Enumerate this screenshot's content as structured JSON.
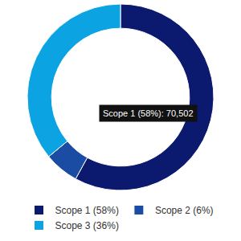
{
  "chart_data": {
    "type": "pie",
    "categories": [
      "Scope 1 (58%)",
      "Scope 2 (6%)",
      "Scope 3 (36%)"
    ],
    "values": [
      58,
      6,
      36
    ],
    "colors": [
      "#0b1a6e",
      "#1a4ca3",
      "#0ca3e2"
    ],
    "legend": "bottom",
    "annotations": [
      "Scope 1 (58%): 70,502"
    ]
  }
}
